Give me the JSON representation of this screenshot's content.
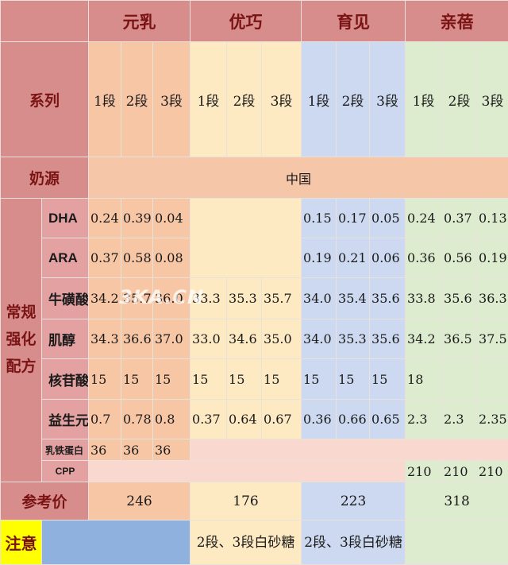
{
  "brands": [
    "元乳",
    "优巧",
    "育见",
    "亲蓓"
  ],
  "row_labels": {
    "series": "系列",
    "milk_source": "奶源",
    "formula_lines": [
      "常规",
      "强化",
      "配方"
    ],
    "price": "参考价",
    "note": "注意"
  },
  "segments": [
    "1段",
    "2段",
    "3段"
  ],
  "milk_source_value": "中国",
  "nutrients": {
    "dha": {
      "label": "DHA",
      "values": [
        "0.24",
        "0.39",
        "0.04",
        "0.15",
        "0.17",
        "0.05",
        "0.24",
        "0.37",
        "0.13"
      ]
    },
    "ara": {
      "label": "ARA",
      "values": [
        "0.37",
        "0.58",
        "0.08",
        "0.19",
        "0.21",
        "0.06",
        "0.36",
        "0.56",
        "0.19"
      ]
    },
    "taurine": {
      "label": "牛磺酸",
      "values": [
        "34.2",
        "35.7",
        "36.0",
        "33.3",
        "35.3",
        "35.7",
        "34.0",
        "35.4",
        "35.6",
        "33.8",
        "35.6",
        "36.3"
      ]
    },
    "inositol": {
      "label": "肌醇",
      "values": [
        "34.3",
        "36.6",
        "37.0",
        "33.0",
        "34.6",
        "35.0",
        "34.0",
        "35.3",
        "35.6",
        "34.2",
        "36.5",
        "37.5"
      ]
    },
    "nucleotide": {
      "label": "核苷酸",
      "values": [
        "15",
        "15",
        "15",
        "15",
        "15",
        "15",
        "15",
        "15",
        "15",
        "18"
      ]
    },
    "prebiotic": {
      "label": "益生元",
      "values": [
        "0.7",
        "0.78",
        "0.8",
        "0.37",
        "0.64",
        "0.67",
        "0.36",
        "0.66",
        "0.65",
        "2.3",
        "2.3",
        "2.35"
      ]
    },
    "lactoferrin": {
      "label": "乳铁蛋白",
      "values": [
        "36",
        "36",
        "36"
      ]
    },
    "cpp": {
      "label": "CPP",
      "values": [
        "210",
        "210",
        "210"
      ]
    }
  },
  "prices": [
    "246",
    "176",
    "223",
    "318"
  ],
  "notes": {
    "youqiao": "2段、3段白砂糖",
    "yujian": "2段、3段白砂糖"
  },
  "watermark": "3KA.CN"
}
